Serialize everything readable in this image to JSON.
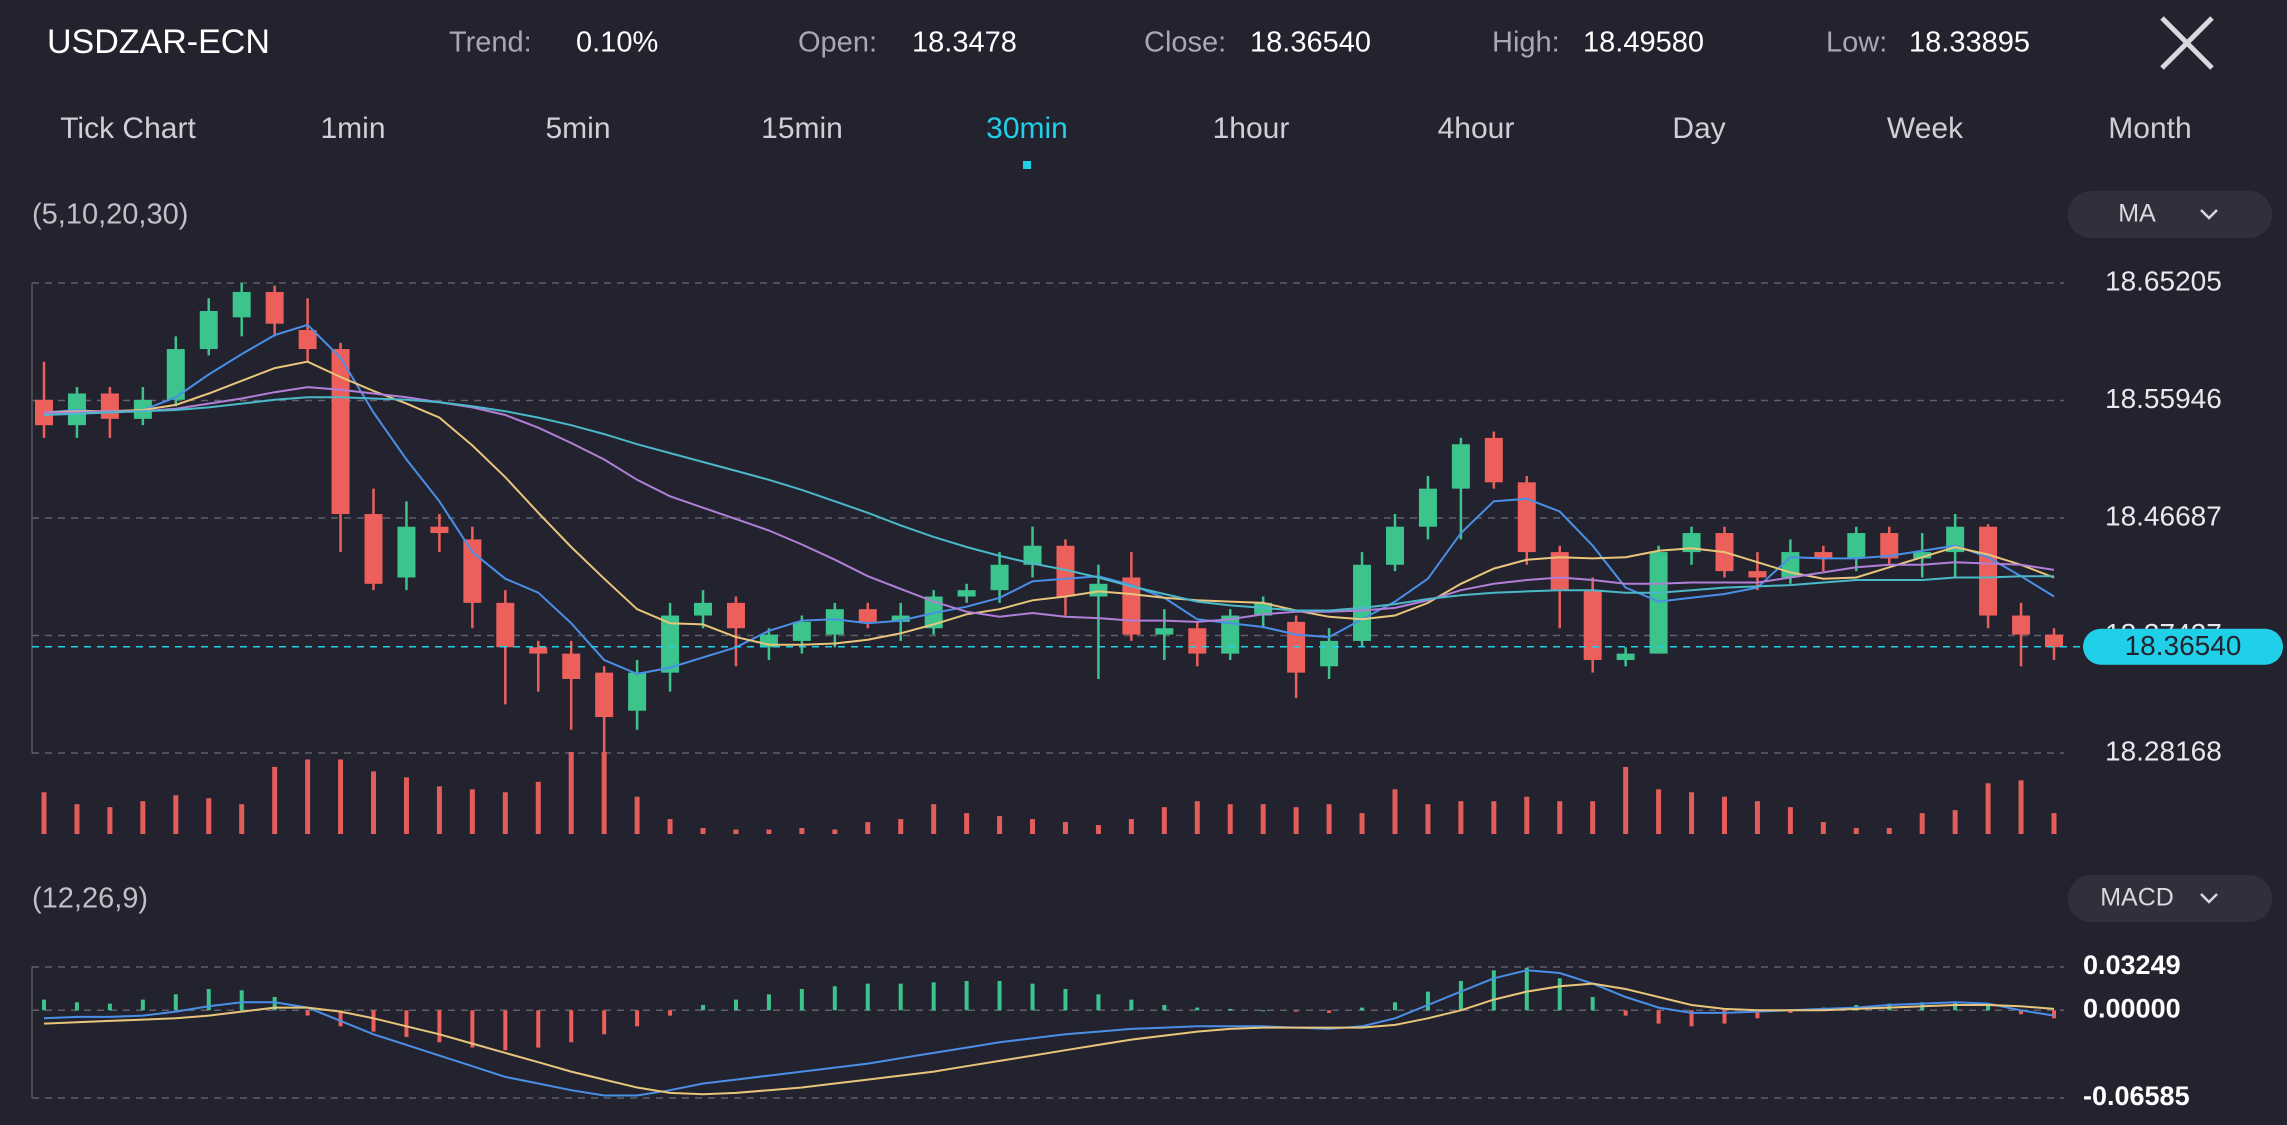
{
  "header": {
    "symbol": "USDZAR-ECN",
    "stats": [
      {
        "label": "Trend:",
        "value": "0.10%"
      },
      {
        "label": "Open:",
        "value": "18.3478"
      },
      {
        "label": "Close:",
        "value": "18.36540"
      },
      {
        "label": "High:",
        "value": "18.49580"
      },
      {
        "label": "Low:",
        "value": "18.33895"
      }
    ]
  },
  "tabs": {
    "items": [
      "Tick Chart",
      "1min",
      "5min",
      "15min",
      "30min",
      "1hour",
      "4hour",
      "Day",
      "Week",
      "Month"
    ],
    "active": 4
  },
  "chart_data": [
    {
      "type": "candlestick",
      "title": "(5,10,20,30)",
      "indicator": "MA",
      "up_color": "#3cc48c",
      "down_color": "#ec5f5b",
      "open": [
        18.56,
        18.54,
        18.565,
        18.545,
        18.56,
        18.6,
        18.625,
        18.645,
        18.615,
        18.6,
        18.47,
        18.42,
        18.46,
        18.45,
        18.4,
        18.365,
        18.36,
        18.345,
        18.315,
        18.345,
        18.39,
        18.4,
        18.365,
        18.37,
        18.375,
        18.395,
        18.385,
        18.38,
        18.405,
        18.41,
        18.43,
        18.445,
        18.405,
        18.42,
        18.375,
        18.38,
        18.36,
        18.39,
        18.385,
        18.35,
        18.37,
        18.43,
        18.46,
        18.49,
        18.53,
        18.495,
        18.44,
        18.41,
        18.355,
        18.36,
        18.44,
        18.455,
        18.425,
        18.42,
        18.44,
        18.435,
        18.455,
        18.435,
        18.44,
        18.46,
        18.39,
        18.375
      ],
      "high": [
        18.59,
        18.57,
        18.57,
        18.57,
        18.61,
        18.64,
        18.652,
        18.65,
        18.64,
        18.605,
        18.49,
        18.48,
        18.47,
        18.46,
        18.41,
        18.37,
        18.37,
        18.35,
        18.355,
        18.4,
        18.41,
        18.405,
        18.38,
        18.39,
        18.4,
        18.4,
        18.4,
        18.41,
        18.415,
        18.44,
        18.46,
        18.45,
        18.43,
        18.44,
        18.395,
        18.385,
        18.395,
        18.405,
        18.39,
        18.38,
        18.44,
        18.47,
        18.5,
        18.53,
        18.535,
        18.5,
        18.445,
        18.42,
        18.365,
        18.445,
        18.46,
        18.46,
        18.44,
        18.45,
        18.445,
        18.46,
        18.46,
        18.455,
        18.47,
        18.462,
        18.4,
        18.38
      ],
      "low": [
        18.53,
        18.53,
        18.53,
        18.54,
        18.555,
        18.595,
        18.61,
        18.61,
        18.59,
        18.44,
        18.41,
        18.41,
        18.44,
        18.38,
        18.32,
        18.33,
        18.3,
        18.282,
        18.3,
        18.33,
        18.38,
        18.35,
        18.355,
        18.36,
        18.365,
        18.38,
        18.37,
        18.375,
        18.4,
        18.4,
        18.42,
        18.39,
        18.34,
        18.37,
        18.355,
        18.35,
        18.355,
        18.38,
        18.325,
        18.34,
        18.365,
        18.425,
        18.45,
        18.45,
        18.49,
        18.43,
        18.38,
        18.345,
        18.35,
        18.36,
        18.43,
        18.42,
        18.41,
        18.415,
        18.425,
        18.425,
        18.43,
        18.42,
        18.42,
        18.38,
        18.35,
        18.355
      ],
      "close": [
        18.54,
        18.565,
        18.545,
        18.56,
        18.6,
        18.63,
        18.645,
        18.62,
        18.6,
        18.47,
        18.415,
        18.46,
        18.455,
        18.4,
        18.365,
        18.36,
        18.34,
        18.31,
        18.345,
        18.39,
        18.4,
        18.38,
        18.375,
        18.385,
        18.395,
        18.385,
        18.39,
        18.405,
        18.41,
        18.43,
        18.445,
        18.405,
        18.415,
        18.375,
        18.38,
        18.36,
        18.39,
        18.4,
        18.345,
        18.37,
        18.43,
        18.46,
        18.49,
        18.525,
        18.495,
        18.44,
        18.41,
        18.355,
        18.36,
        18.44,
        18.455,
        18.425,
        18.42,
        18.44,
        18.435,
        18.455,
        18.435,
        18.44,
        18.46,
        18.39,
        18.375,
        18.365
      ],
      "series": [
        {
          "color": "#4a8fe7",
          "values": [
            18.55,
            18.552,
            18.55,
            18.552,
            18.562,
            18.58,
            18.596,
            18.611,
            18.619,
            18.593,
            18.55,
            18.513,
            18.48,
            18.44,
            18.419,
            18.408,
            18.384,
            18.355,
            18.344,
            18.349,
            18.357,
            18.365,
            18.378,
            18.386,
            18.387,
            18.384,
            18.386,
            18.392,
            18.397,
            18.404,
            18.417,
            18.419,
            18.421,
            18.414,
            18.404,
            18.387,
            18.384,
            18.381,
            18.375,
            18.373,
            18.387,
            18.401,
            18.419,
            18.455,
            18.48,
            18.482,
            18.472,
            18.445,
            18.412,
            18.401,
            18.404,
            18.407,
            18.412,
            18.436,
            18.435,
            18.435,
            18.437,
            18.441,
            18.445,
            18.436,
            18.421,
            18.405
          ]
        },
        {
          "color": "#e8c57a",
          "values": [
            18.55,
            18.551,
            18.551,
            18.552,
            18.556,
            18.565,
            18.575,
            18.585,
            18.59,
            18.578,
            18.567,
            18.557,
            18.546,
            18.524,
            18.499,
            18.471,
            18.444,
            18.419,
            18.395,
            18.384,
            18.383,
            18.373,
            18.367,
            18.367,
            18.368,
            18.371,
            18.376,
            18.383,
            18.391,
            18.395,
            18.402,
            18.405,
            18.409,
            18.407,
            18.404,
            18.402,
            18.401,
            18.4,
            18.394,
            18.389,
            18.387,
            18.39,
            18.4,
            18.415,
            18.427,
            18.434,
            18.436,
            18.435,
            18.436,
            18.441,
            18.443,
            18.44,
            18.432,
            18.424,
            18.419,
            18.42,
            18.428,
            18.436,
            18.444,
            18.438,
            18.43,
            18.42
          ]
        },
        {
          "color": "#b07fd8",
          "values": [
            18.55,
            18.55,
            18.551,
            18.551,
            18.553,
            18.557,
            18.561,
            18.566,
            18.57,
            18.568,
            18.565,
            18.562,
            18.558,
            18.554,
            18.548,
            18.538,
            18.526,
            18.513,
            18.497,
            18.484,
            18.475,
            18.466,
            18.457,
            18.446,
            18.434,
            18.421,
            18.411,
            18.401,
            18.393,
            18.389,
            18.392,
            18.389,
            18.388,
            18.386,
            18.386,
            18.385,
            18.387,
            18.391,
            18.393,
            18.393,
            18.394,
            18.396,
            18.402,
            18.41,
            18.415,
            18.418,
            18.42,
            18.418,
            18.415,
            18.415,
            18.416,
            18.416,
            18.416,
            18.42,
            18.424,
            18.428,
            18.43,
            18.43,
            18.432,
            18.431,
            18.43,
            18.426
          ]
        },
        {
          "color": "#4ab8c8",
          "values": [
            18.548,
            18.549,
            18.55,
            18.551,
            18.552,
            18.554,
            18.557,
            18.56,
            18.562,
            18.562,
            18.561,
            18.56,
            18.558,
            18.555,
            18.551,
            18.546,
            18.54,
            18.533,
            18.525,
            18.518,
            18.511,
            18.504,
            18.497,
            18.489,
            18.48,
            18.471,
            18.461,
            18.452,
            18.444,
            18.437,
            18.431,
            18.426,
            18.42,
            18.413,
            18.407,
            18.401,
            18.398,
            18.396,
            18.394,
            18.394,
            18.396,
            18.399,
            18.403,
            18.406,
            18.408,
            18.409,
            18.41,
            18.41,
            18.408,
            18.408,
            18.41,
            18.412,
            18.413,
            18.414,
            18.416,
            18.418,
            18.418,
            18.418,
            18.42,
            18.42,
            18.421,
            18.421
          ]
        }
      ],
      "ylim": [
        18.28168,
        18.65205
      ],
      "yticks": [
        18.28168,
        18.37427,
        18.46687,
        18.55946,
        18.65205
      ],
      "grid": true,
      "last_price": {
        "value": 18.3654,
        "label": "18.36540"
      },
      "last_price_color": "#1fd0e8"
    },
    {
      "type": "bar",
      "color": "#e35d5b",
      "values": [
        28,
        20,
        18,
        22,
        26,
        24,
        20,
        45,
        50,
        50,
        42,
        38,
        32,
        30,
        28,
        35,
        55,
        55,
        25,
        10,
        4,
        3,
        3,
        4,
        3,
        8,
        10,
        20,
        14,
        12,
        10,
        8,
        6,
        10,
        18,
        22,
        20,
        20,
        18,
        20,
        14,
        30,
        20,
        22,
        22,
        25,
        22,
        22,
        45,
        30,
        28,
        25,
        22,
        18,
        8,
        4,
        4,
        14,
        16,
        34,
        36,
        14
      ]
    },
    {
      "type": "macd",
      "title": "(12,26,9)",
      "indicator": "MACD",
      "histogram": {
        "up_color": "#3cc48c",
        "down_color": "#ec5f5b",
        "values": [
          0.008,
          0.006,
          0.005,
          0.008,
          0.012,
          0.016,
          0.015,
          0.01,
          -0.004,
          -0.012,
          -0.016,
          -0.02,
          -0.024,
          -0.028,
          -0.03,
          -0.028,
          -0.024,
          -0.018,
          -0.012,
          -0.004,
          0.004,
          0.008,
          0.012,
          0.016,
          0.018,
          0.02,
          0.02,
          0.021,
          0.022,
          0.022,
          0.02,
          0.016,
          0.012,
          0.008,
          0.004,
          0.002,
          0.001,
          0,
          -0.001,
          -0.002,
          0.002,
          0.006,
          0.014,
          0.022,
          0.03,
          0.032,
          0.024,
          0.01,
          -0.004,
          -0.01,
          -0.012,
          -0.01,
          -0.006,
          -0.002,
          0.002,
          0.004,
          0.005,
          0.006,
          0.006,
          0.004,
          -0.003,
          -0.006
        ]
      },
      "series": [
        {
          "color": "#4a8fe7",
          "values": [
            -0.006,
            -0.005,
            -0.005,
            -0.004,
            -0.001,
            0.003,
            0.006,
            0.006,
            0.002,
            -0.008,
            -0.018,
            -0.026,
            -0.034,
            -0.042,
            -0.05,
            -0.055,
            -0.06,
            -0.064,
            -0.064,
            -0.06,
            -0.055,
            -0.052,
            -0.049,
            -0.046,
            -0.043,
            -0.04,
            -0.036,
            -0.032,
            -0.028,
            -0.024,
            -0.021,
            -0.018,
            -0.016,
            -0.014,
            -0.013,
            -0.012,
            -0.012,
            -0.012,
            -0.013,
            -0.014,
            -0.012,
            -0.006,
            0.004,
            0.014,
            0.024,
            0.03,
            0.028,
            0.02,
            0.01,
            0.002,
            -0.002,
            -0.002,
            -0.001,
            0,
            0.001,
            0.002,
            0.004,
            0.005,
            0.006,
            0.005,
            0,
            -0.004
          ]
        },
        {
          "color": "#e8c57a",
          "values": [
            -0.01,
            -0.009,
            -0.008,
            -0.007,
            -0.006,
            -0.004,
            -0.001,
            0.002,
            0.002,
            -0.001,
            -0.006,
            -0.012,
            -0.018,
            -0.025,
            -0.032,
            -0.039,
            -0.046,
            -0.052,
            -0.058,
            -0.062,
            -0.063,
            -0.062,
            -0.06,
            -0.058,
            -0.055,
            -0.052,
            -0.049,
            -0.046,
            -0.042,
            -0.038,
            -0.034,
            -0.03,
            -0.026,
            -0.022,
            -0.019,
            -0.016,
            -0.014,
            -0.013,
            -0.013,
            -0.013,
            -0.013,
            -0.011,
            -0.006,
            0,
            0.008,
            0.014,
            0.018,
            0.02,
            0.016,
            0.01,
            0.004,
            0.001,
            0,
            0,
            0,
            0.001,
            0.002,
            0.003,
            0.004,
            0.004,
            0.003,
            0.001
          ]
        }
      ],
      "ylim": [
        -0.06585,
        0.03249
      ],
      "yticks": [
        -0.06585,
        {
          "value": 0,
          "label": "0.00000"
        },
        0.03249
      ],
      "grid": true
    }
  ]
}
